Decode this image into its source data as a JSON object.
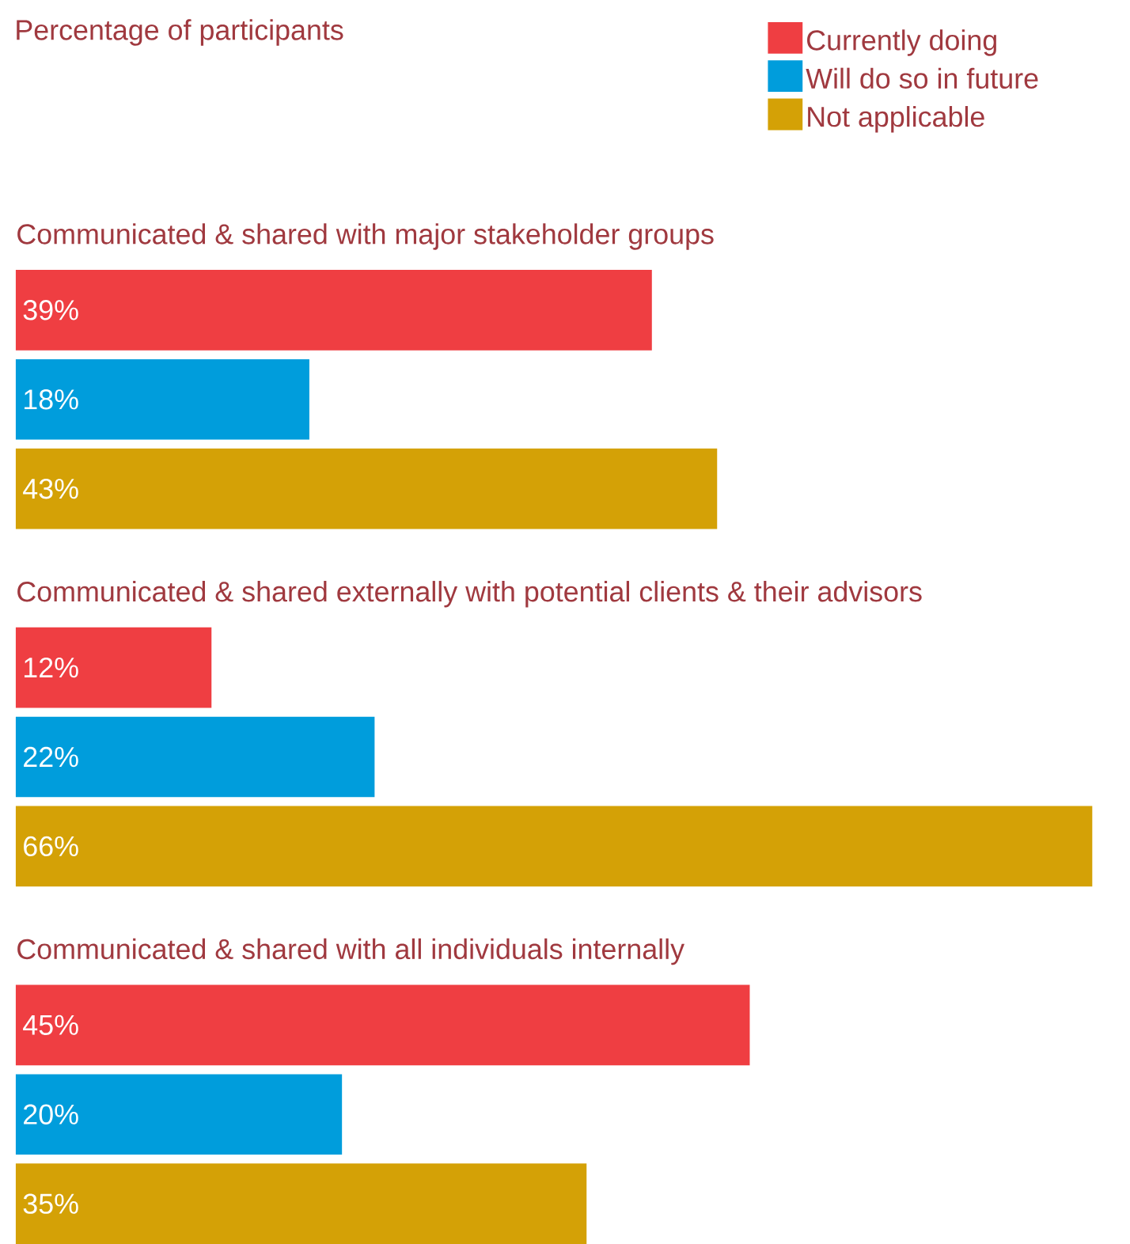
{
  "chart_data": {
    "type": "bar",
    "orientation": "horizontal",
    "title": "Percentage of participants",
    "categories": [
      "Communicated & shared with major stakeholder groups",
      "Communicated & shared externally with potential clients & their advisors",
      "Communicated & shared with all individuals internally"
    ],
    "series": [
      {
        "name": "Currently doing",
        "color": "#ef3e42",
        "values": [
          39,
          12,
          45
        ],
        "value_labels": [
          "39%",
          "12%",
          "45%"
        ]
      },
      {
        "name": "Will do so in future",
        "color": "#009ddc",
        "values": [
          18,
          22,
          20
        ],
        "value_labels": [
          "18%",
          "22%",
          "20%"
        ]
      },
      {
        "name": "Not applicable",
        "color": "#d4a106",
        "values": [
          43,
          66,
          35
        ],
        "value_labels": [
          "43%",
          "66%",
          "35%"
        ]
      }
    ],
    "legend": "top right"
  }
}
